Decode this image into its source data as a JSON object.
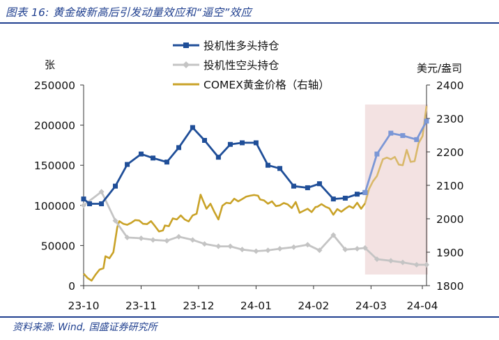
{
  "header": {
    "title": "图表 16: 黄金破新高后引发动量效应和“逼空”效应"
  },
  "footer": {
    "source": "资料来源: Wind, 国盛证券研究所"
  },
  "chart_data": {
    "type": "line",
    "title": "黄金破新高后引发动量效应和“逼空”效应",
    "left_unit": "张",
    "right_unit": "美元/盎司",
    "left_ylim": [
      0,
      250000
    ],
    "left_ticks": [
      "0",
      "50000",
      "100000",
      "150000",
      "200000",
      "250000"
    ],
    "right_ylim": [
      1800,
      2400
    ],
    "right_ticks": [
      "1800",
      "1900",
      "2000",
      "2100",
      "2200",
      "2300",
      "2400"
    ],
    "xlim": [
      0,
      173
    ],
    "x_ticks": [
      {
        "x": 0,
        "label": "23-10"
      },
      {
        "x": 29,
        "label": "23-11"
      },
      {
        "x": 58,
        "label": "23-12"
      },
      {
        "x": 87,
        "label": "24-01"
      },
      {
        "x": 116,
        "label": "24-02"
      },
      {
        "x": 145,
        "label": "24-03"
      },
      {
        "x": 174,
        "label": "24-04"
      }
    ],
    "highlight": {
      "x_start": 142,
      "x_end": 173,
      "color": "#f3e2e2"
    },
    "legend": [
      "投机性多头持仓",
      "投机性空头持仓",
      "COMEX黄金价格（右轴）"
    ],
    "series": [
      {
        "name": "投机性多头持仓",
        "axis": "left",
        "color": "#1f4e98",
        "marker": "square",
        "x": [
          0,
          3,
          9,
          16,
          22,
          29,
          35,
          42,
          48,
          55,
          61,
          68,
          74,
          80,
          87,
          93,
          99,
          106,
          113,
          119,
          126,
          132,
          138,
          142
        ],
        "values": [
          108000,
          102000,
          102000,
          124000,
          151000,
          164000,
          159000,
          154000,
          172000,
          197000,
          181000,
          160000,
          176000,
          178000,
          178000,
          150000,
          146000,
          124000,
          122000,
          127000,
          108000,
          109000,
          114000,
          116000
        ]
      },
      {
        "name": "投机性多头持仓（高亮段）",
        "axis": "left",
        "color": "#7b97d6",
        "marker": "square",
        "x": [
          142,
          148,
          155,
          161,
          168,
          173
        ],
        "values": [
          116000,
          164000,
          190000,
          187000,
          182000,
          205000
        ]
      },
      {
        "name": "投机性空头持仓",
        "axis": "left",
        "color": "#c4c4c4",
        "marker": "diamond",
        "x": [
          0,
          9,
          16,
          22,
          29,
          35,
          42,
          48,
          55,
          61,
          68,
          74,
          80,
          87,
          93,
          99,
          106,
          113,
          119,
          126,
          132,
          138,
          142,
          148,
          155,
          161,
          168,
          173
        ],
        "values": [
          100000,
          117000,
          81000,
          60000,
          59000,
          57000,
          56000,
          61000,
          57000,
          52000,
          49000,
          49000,
          45000,
          43000,
          44000,
          46000,
          48000,
          51000,
          44000,
          63000,
          45000,
          46000,
          47000,
          33000,
          31000,
          29000,
          26000,
          26000
        ]
      },
      {
        "name": "COMEX黄金价格（右轴）",
        "axis": "right",
        "color": "#c9a227",
        "x": [
          0,
          2,
          4,
          6,
          8,
          10,
          11,
          13,
          15,
          17,
          18,
          20,
          22,
          24,
          26,
          28,
          30,
          32,
          34,
          36,
          38,
          40,
          41,
          43,
          45,
          47,
          49,
          51,
          53,
          55,
          57,
          59,
          60,
          62,
          64,
          66,
          68,
          70,
          72,
          74,
          76,
          78,
          80,
          82,
          84,
          86,
          88,
          89,
          91,
          93,
          95,
          97,
          99,
          101,
          103,
          105,
          107,
          109,
          111,
          113,
          115,
          117,
          118,
          120,
          122,
          124,
          126,
          128,
          130,
          132,
          134,
          136,
          138,
          140,
          142
        ],
        "values": [
          1836,
          1823,
          1815,
          1833,
          1848,
          1852,
          1888,
          1882,
          1900,
          1975,
          1993,
          1985,
          1982,
          1988,
          1996,
          1995,
          1985,
          1984,
          1993,
          1978,
          1962,
          1965,
          1980,
          1978,
          2001,
          1998,
          2010,
          1998,
          1992,
          2010,
          2015,
          2072,
          2058,
          2030,
          2045,
          2020,
          1998,
          2039,
          2048,
          2046,
          2060,
          2052,
          2059,
          2066,
          2069,
          2071,
          2069,
          2058,
          2055,
          2045,
          2052,
          2038,
          2040,
          2047,
          2043,
          2032,
          2050,
          2018,
          2024,
          2030,
          2020,
          2035,
          2036,
          2044,
          2036,
          2031,
          2012,
          2029,
          2021,
          2030,
          2038,
          2032,
          2048,
          2030,
          2046
        ]
      },
      {
        "name": "COMEX黄金价格（高亮段）",
        "axis": "right",
        "color": "#d9b86a",
        "x": [
          142,
          144,
          146,
          148,
          150,
          151,
          153,
          155,
          157,
          159,
          161,
          163,
          165,
          167,
          169,
          171,
          173
        ],
        "values": [
          2046,
          2089,
          2112,
          2128,
          2162,
          2178,
          2183,
          2178,
          2185,
          2162,
          2160,
          2206,
          2170,
          2172,
          2226,
          2247,
          2337
        ]
      }
    ]
  }
}
